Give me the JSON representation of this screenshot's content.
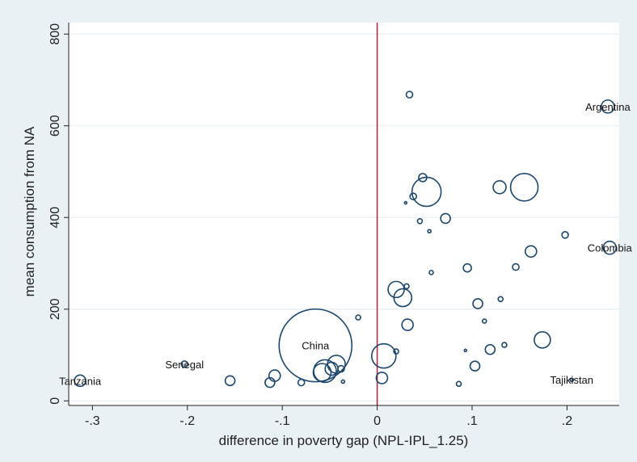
{
  "chart_data": {
    "type": "scatter",
    "xlabel": "difference in poverty gap (NPL-IPL_1.25)",
    "ylabel": "mean consumption from NA",
    "xlim": [
      -0.325,
      0.255
    ],
    "ylim": [
      -10,
      825
    ],
    "xticks": [
      -0.3,
      -0.2,
      -0.1,
      0,
      0.1,
      0.2
    ],
    "xtick_labels": [
      "-.3",
      "-.2",
      "-.1",
      "0",
      ".1",
      ".2"
    ],
    "yticks": [
      0,
      200,
      400,
      600,
      800
    ],
    "ytick_labels": [
      "0",
      "200",
      "400",
      "600",
      "800"
    ],
    "grid": "horizontal",
    "reference_line": {
      "x": 0,
      "color": "#b0203b"
    },
    "marker_color": "#1a476f",
    "points": [
      {
        "x": -0.313,
        "y": 44,
        "size": 7,
        "label": "Tanzania"
      },
      {
        "x": -0.203,
        "y": 80,
        "size": 4,
        "label": "Senegal"
      },
      {
        "x": -0.065,
        "y": 121,
        "size": 45,
        "label": "China"
      },
      {
        "x": -0.155,
        "y": 44,
        "size": 6
      },
      {
        "x": -0.113,
        "y": 40,
        "size": 6
      },
      {
        "x": -0.108,
        "y": 55,
        "size": 7
      },
      {
        "x": -0.08,
        "y": 40,
        "size": 4
      },
      {
        "x": -0.058,
        "y": 62,
        "size": 11
      },
      {
        "x": -0.055,
        "y": 65,
        "size": 14
      },
      {
        "x": -0.048,
        "y": 70,
        "size": 8
      },
      {
        "x": -0.043,
        "y": 80,
        "size": 11
      },
      {
        "x": -0.038,
        "y": 70,
        "size": 4
      },
      {
        "x": -0.036,
        "y": 42,
        "size": 2
      },
      {
        "x": -0.02,
        "y": 182,
        "size": 3
      },
      {
        "x": 0.005,
        "y": 50,
        "size": 7
      },
      {
        "x": 0.007,
        "y": 98,
        "size": 15
      },
      {
        "x": 0.02,
        "y": 108,
        "size": 3
      },
      {
        "x": 0.02,
        "y": 243,
        "size": 10
      },
      {
        "x": 0.027,
        "y": 225,
        "size": 11
      },
      {
        "x": 0.032,
        "y": 166,
        "size": 7
      },
      {
        "x": 0.031,
        "y": 250,
        "size": 3
      },
      {
        "x": 0.03,
        "y": 432,
        "size": 1.5
      },
      {
        "x": 0.034,
        "y": 668,
        "size": 4
      },
      {
        "x": 0.038,
        "y": 446,
        "size": 4
      },
      {
        "x": 0.045,
        "y": 392,
        "size": 3
      },
      {
        "x": 0.048,
        "y": 487,
        "size": 5
      },
      {
        "x": 0.052,
        "y": 456,
        "size": 18
      },
      {
        "x": 0.055,
        "y": 370,
        "size": 2
      },
      {
        "x": 0.057,
        "y": 280,
        "size": 2.5
      },
      {
        "x": 0.072,
        "y": 398,
        "size": 6
      },
      {
        "x": 0.086,
        "y": 37,
        "size": 3
      },
      {
        "x": 0.093,
        "y": 110,
        "size": 1.5
      },
      {
        "x": 0.095,
        "y": 290,
        "size": 5
      },
      {
        "x": 0.103,
        "y": 76,
        "size": 6
      },
      {
        "x": 0.106,
        "y": 212,
        "size": 6
      },
      {
        "x": 0.113,
        "y": 174,
        "size": 2.5
      },
      {
        "x": 0.119,
        "y": 112,
        "size": 6
      },
      {
        "x": 0.129,
        "y": 466,
        "size": 8
      },
      {
        "x": 0.13,
        "y": 222,
        "size": 3
      },
      {
        "x": 0.134,
        "y": 122,
        "size": 3
      },
      {
        "x": 0.146,
        "y": 292,
        "size": 4
      },
      {
        "x": 0.155,
        "y": 466,
        "size": 17
      },
      {
        "x": 0.162,
        "y": 326,
        "size": 7
      },
      {
        "x": 0.174,
        "y": 133,
        "size": 10
      },
      {
        "x": 0.198,
        "y": 362,
        "size": 4
      },
      {
        "x": 0.205,
        "y": 46,
        "size": 2,
        "label": "Tajikistan"
      },
      {
        "x": 0.243,
        "y": 642,
        "size": 8,
        "label": "Argentina"
      },
      {
        "x": 0.245,
        "y": 334,
        "size": 8,
        "label": "Colombia"
      }
    ]
  }
}
